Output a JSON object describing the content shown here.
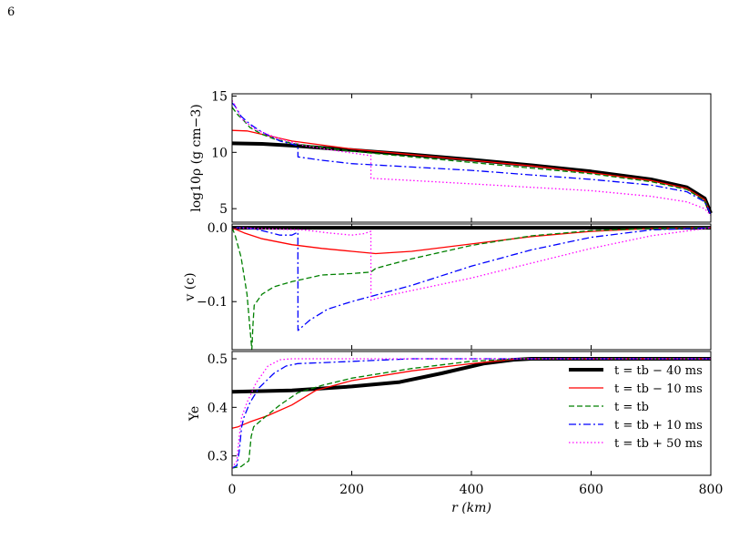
{
  "page_number": "6",
  "chart_data": [
    {
      "type": "line",
      "xlabel": "",
      "ylabel": "log10ρ (g cm−3)",
      "xlim": [
        0,
        800
      ],
      "ylim": [
        3.8,
        15.2
      ],
      "yticks": [
        5,
        10,
        15
      ],
      "ytick_labels": [
        "5",
        "10",
        "15"
      ],
      "grid": false,
      "series": [
        {
          "name": "t = tb − 40 ms",
          "color": "#000000",
          "style": "solid",
          "width": 4,
          "x": [
            0,
            50,
            100,
            200,
            300,
            400,
            500,
            600,
            700,
            760,
            790,
            800
          ],
          "y": [
            10.8,
            10.75,
            10.6,
            10.2,
            9.8,
            9.35,
            8.85,
            8.3,
            7.6,
            6.9,
            5.9,
            4.6
          ]
        },
        {
          "name": "t = tb − 10 ms",
          "color": "#ff0000",
          "style": "solid",
          "width": 1.3,
          "x": [
            0,
            25,
            50,
            100,
            200,
            300,
            400,
            500,
            600,
            700,
            760,
            790,
            800
          ],
          "y": [
            11.95,
            11.9,
            11.6,
            11.0,
            10.3,
            9.8,
            9.3,
            8.8,
            8.2,
            7.5,
            6.8,
            5.8,
            4.5
          ]
        },
        {
          "name": "t = tb",
          "color": "#008000",
          "style": "dashed",
          "width": 1.3,
          "x": [
            0,
            10,
            20,
            30,
            50,
            70,
            100,
            200,
            300,
            400,
            500,
            600,
            700,
            760,
            790,
            800
          ],
          "y": [
            14.0,
            13.3,
            12.8,
            12.2,
            11.6,
            11.2,
            10.8,
            10.1,
            9.6,
            9.1,
            8.6,
            8.1,
            7.4,
            6.7,
            5.7,
            4.5
          ]
        },
        {
          "name": "t = tb + 10 ms",
          "color": "#0000ff",
          "style": "dashdot",
          "width": 1.3,
          "x": [
            0,
            5,
            15,
            30,
            50,
            80,
            110,
            110.1,
            150,
            200,
            300,
            400,
            500,
            600,
            700,
            760,
            790,
            800
          ],
          "y": [
            14.4,
            14.1,
            13.2,
            12.5,
            11.8,
            11.0,
            10.6,
            9.6,
            9.3,
            9.0,
            8.7,
            8.4,
            8.0,
            7.6,
            7.1,
            6.5,
            5.6,
            4.5
          ]
        },
        {
          "name": "t = tb + 50 ms",
          "color": "#ff00ff",
          "style": "dotted",
          "width": 1.3,
          "x": [
            0,
            5,
            15,
            40,
            80,
            120,
            180,
            232,
            232.1,
            300,
            400,
            500,
            600,
            700,
            760,
            790,
            800
          ],
          "y": [
            14.6,
            14.2,
            13.0,
            12.0,
            11.2,
            10.6,
            10.1,
            9.7,
            7.7,
            7.5,
            7.2,
            6.9,
            6.6,
            6.1,
            5.6,
            5.0,
            4.4
          ]
        }
      ]
    },
    {
      "type": "line",
      "xlabel": "",
      "ylabel": "v (c)",
      "xlim": [
        0,
        800
      ],
      "ylim": [
        -0.165,
        0.005
      ],
      "yticks": [
        0.0,
        -0.1
      ],
      "ytick_labels": [
        "0.0",
        "−0.1"
      ],
      "grid": false,
      "series": [
        {
          "name": "t = tb − 40 ms",
          "color": "#000000",
          "style": "solid",
          "width": 4,
          "x": [
            0,
            800
          ],
          "y": [
            0.0,
            0.0
          ]
        },
        {
          "name": "t = tb − 10 ms",
          "color": "#ff0000",
          "style": "solid",
          "width": 1.3,
          "x": [
            0,
            20,
            50,
            100,
            150,
            200,
            240,
            300,
            400,
            500,
            600,
            700,
            800
          ],
          "y": [
            0.0,
            -0.007,
            -0.015,
            -0.023,
            -0.028,
            -0.032,
            -0.035,
            -0.032,
            -0.022,
            -0.012,
            -0.005,
            -0.001,
            0.0
          ]
        },
        {
          "name": "t = tb",
          "color": "#008000",
          "style": "dashed",
          "width": 1.3,
          "x": [
            0,
            5,
            15,
            25,
            33,
            35,
            37,
            50,
            70,
            100,
            150,
            200,
            232,
            240,
            300,
            400,
            500,
            600,
            700,
            800
          ],
          "y": [
            0.0,
            -0.01,
            -0.04,
            -0.09,
            -0.165,
            -0.13,
            -0.105,
            -0.09,
            -0.08,
            -0.073,
            -0.064,
            -0.062,
            -0.06,
            -0.055,
            -0.042,
            -0.024,
            -0.011,
            -0.004,
            -0.001,
            0.0
          ]
        },
        {
          "name": "t = tb + 10 ms",
          "color": "#0000ff",
          "style": "dashdot",
          "width": 1.3,
          "x": [
            0,
            20,
            40,
            60,
            80,
            100,
            110,
            110.1,
            130,
            160,
            200,
            300,
            400,
            500,
            600,
            700,
            800
          ],
          "y": [
            0.0,
            0.0,
            -0.002,
            -0.006,
            -0.01,
            -0.01,
            -0.006,
            -0.139,
            -0.125,
            -0.11,
            -0.1,
            -0.078,
            -0.052,
            -0.03,
            -0.013,
            -0.003,
            0.0
          ]
        },
        {
          "name": "t = tb + 50 ms",
          "color": "#ff00ff",
          "style": "dotted",
          "width": 1.3,
          "x": [
            0,
            120,
            160,
            200,
            220,
            232,
            232.1,
            260,
            300,
            400,
            500,
            600,
            700,
            800
          ],
          "y": [
            0.0,
            -0.003,
            -0.007,
            -0.01,
            -0.008,
            -0.005,
            -0.098,
            -0.092,
            -0.085,
            -0.068,
            -0.048,
            -0.028,
            -0.011,
            0.0
          ]
        }
      ]
    },
    {
      "type": "line",
      "xlabel": "r (km)",
      "ylabel": "Ye",
      "xlim": [
        0,
        800
      ],
      "ylim": [
        0.26,
        0.515
      ],
      "yticks": [
        0.3,
        0.4,
        0.5
      ],
      "ytick_labels": [
        "0.3",
        "0.4",
        "0.5"
      ],
      "xticks": [
        0,
        200,
        400,
        600,
        800
      ],
      "xtick_labels": [
        "0",
        "200",
        "400",
        "600",
        "800"
      ],
      "grid": false,
      "legend": "right",
      "series": [
        {
          "name": "t = tb − 40 ms",
          "color": "#000000",
          "style": "solid",
          "width": 4,
          "x": [
            0,
            100,
            200,
            280,
            350,
            420,
            470,
            500,
            800
          ],
          "y": [
            0.432,
            0.435,
            0.443,
            0.452,
            0.47,
            0.49,
            0.498,
            0.5,
            0.5
          ]
        },
        {
          "name": "t = tb − 10 ms",
          "color": "#ff0000",
          "style": "solid",
          "width": 1.3,
          "x": [
            0,
            10,
            30,
            60,
            100,
            140,
            200,
            300,
            400,
            480,
            800
          ],
          "y": [
            0.357,
            0.36,
            0.37,
            0.383,
            0.405,
            0.435,
            0.455,
            0.475,
            0.49,
            0.5,
            0.5
          ]
        },
        {
          "name": "t = tb",
          "color": "#008000",
          "style": "dashed",
          "width": 1.3,
          "x": [
            0,
            15,
            28,
            32,
            36,
            50,
            80,
            110,
            150,
            200,
            300,
            400,
            480,
            800
          ],
          "y": [
            0.275,
            0.278,
            0.29,
            0.34,
            0.36,
            0.375,
            0.405,
            0.43,
            0.445,
            0.46,
            0.48,
            0.495,
            0.5,
            0.5
          ]
        },
        {
          "name": "t = tb + 10 ms",
          "color": "#0000ff",
          "style": "dashdot",
          "width": 1.3,
          "x": [
            0,
            8,
            12,
            16,
            20,
            30,
            45,
            70,
            90,
            110,
            150,
            300,
            800
          ],
          "y": [
            0.275,
            0.28,
            0.31,
            0.36,
            0.38,
            0.41,
            0.44,
            0.47,
            0.485,
            0.49,
            0.492,
            0.5,
            0.5
          ]
        },
        {
          "name": "t = tb + 50 ms",
          "color": "#ff00ff",
          "style": "dotted",
          "width": 1.3,
          "x": [
            0,
            8,
            12,
            16,
            25,
            40,
            60,
            80,
            100,
            800
          ],
          "y": [
            0.275,
            0.29,
            0.34,
            0.38,
            0.41,
            0.45,
            0.485,
            0.498,
            0.5,
            0.5
          ]
        }
      ]
    }
  ]
}
